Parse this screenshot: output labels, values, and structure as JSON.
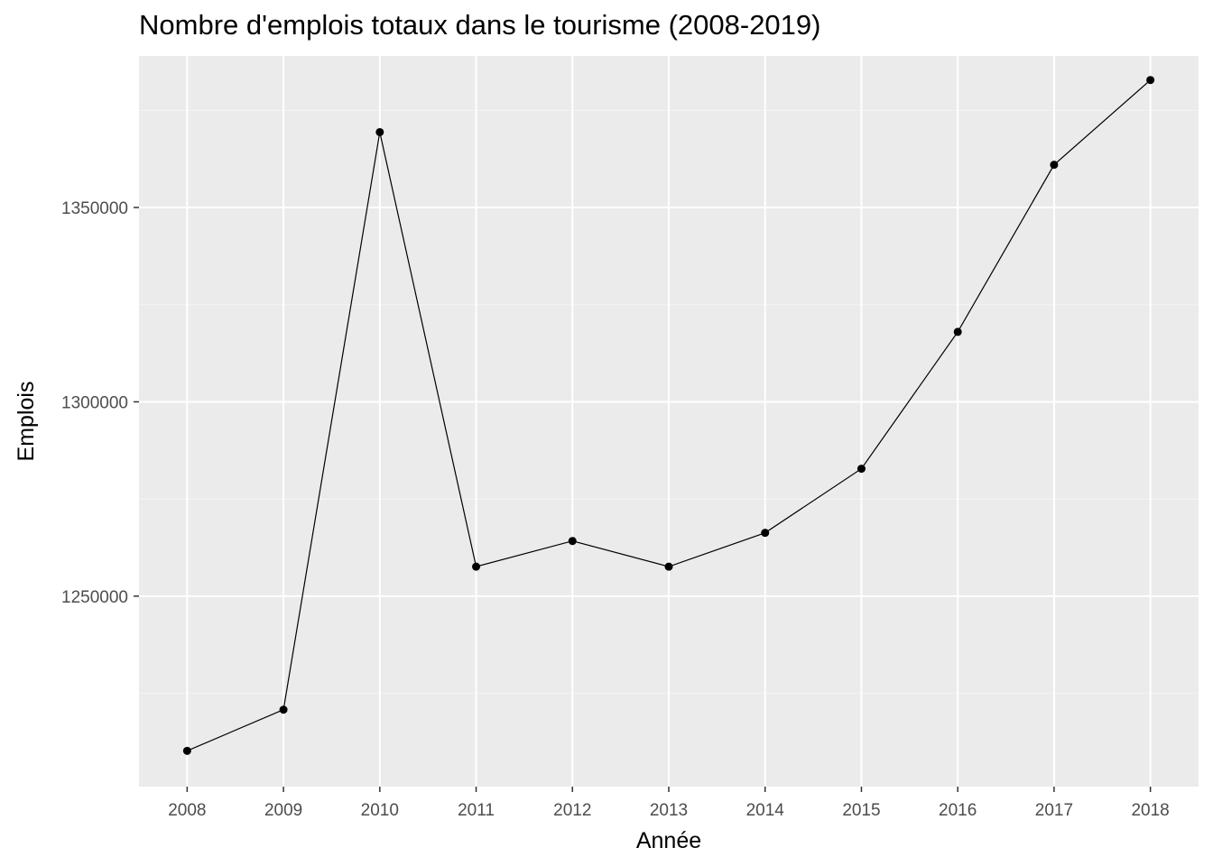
{
  "chart_data": {
    "type": "line",
    "title": "Nombre d'emplois totaux dans le tourisme (2008-2019)",
    "xlabel": "Année",
    "ylabel": "Emplois",
    "x": [
      2008,
      2009,
      2010,
      2011,
      2012,
      2013,
      2014,
      2015,
      2016,
      2017,
      2018
    ],
    "series": [
      {
        "values": [
          1210200,
          1220800,
          1369400,
          1257600,
          1264200,
          1257600,
          1266300,
          1282800,
          1318000,
          1361000,
          1382800
        ]
      }
    ],
    "x_tick_labels": [
      "2008",
      "2009",
      "2010",
      "2011",
      "2012",
      "2013",
      "2014",
      "2015",
      "2016",
      "2017",
      "2018"
    ],
    "y_ticks": [
      1250000,
      1300000,
      1350000
    ],
    "y_tick_labels": [
      "1250000",
      "1300000",
      "1350000"
    ],
    "xlim": [
      2007.5,
      2018.5
    ],
    "ylim": [
      1201000,
      1389000
    ],
    "grid": true,
    "colors": {
      "panel_background": "#ebebeb",
      "grid_major": "#ffffff",
      "grid_minor": "#f5f5f5",
      "line": "#000000",
      "point": "#000000"
    }
  }
}
